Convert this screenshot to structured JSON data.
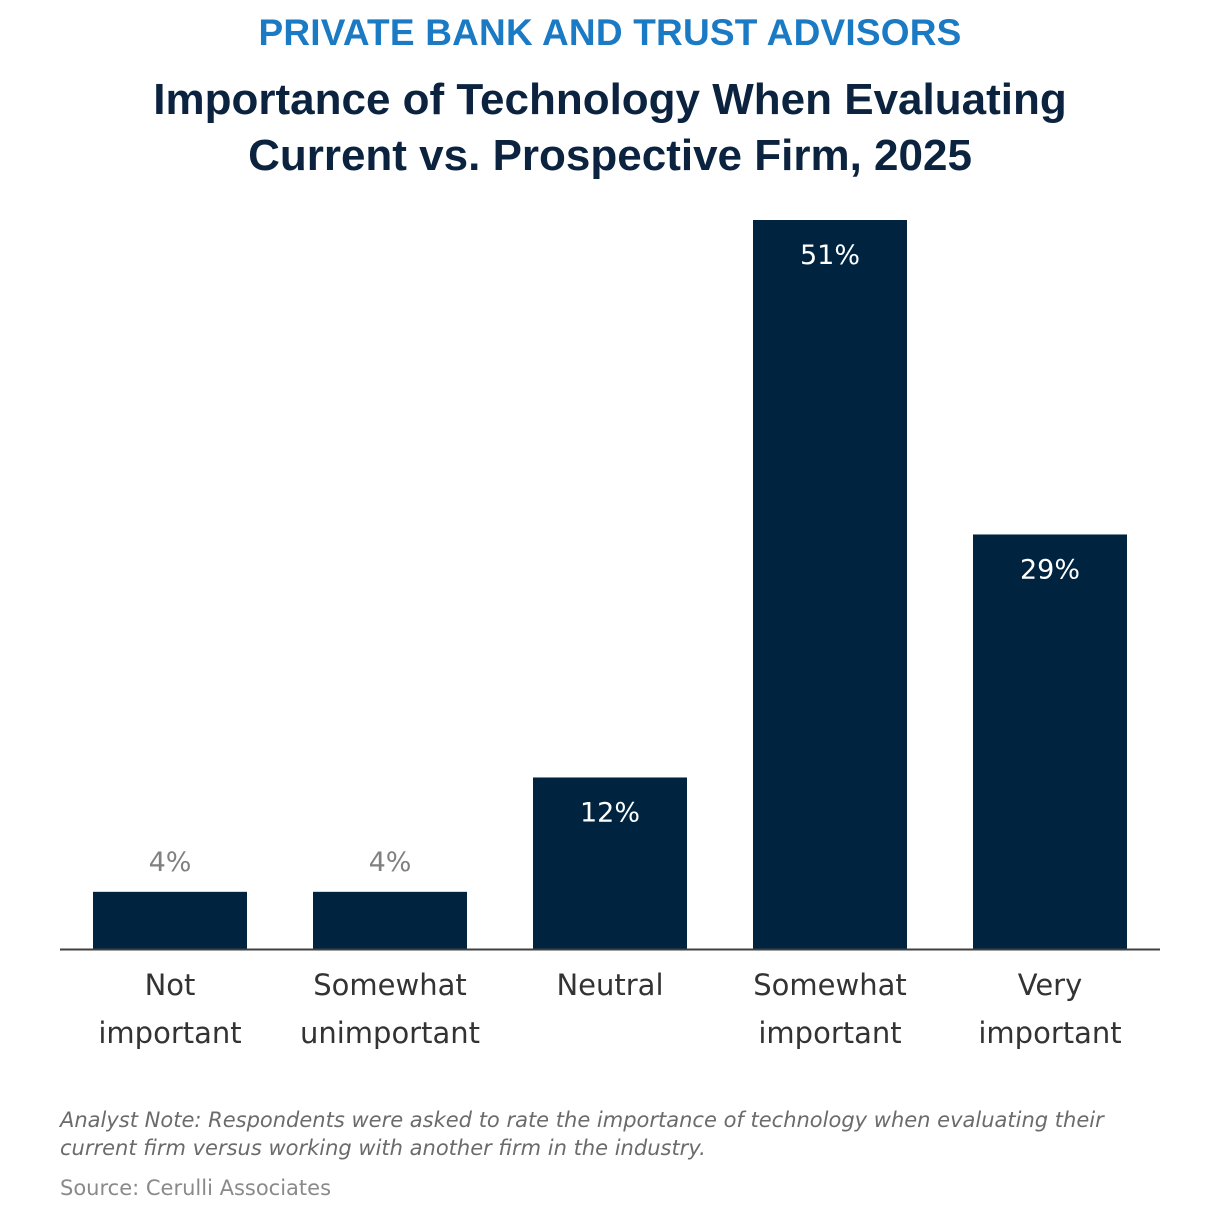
{
  "header": {
    "kicker": "PRIVATE BANK AND TRUST ADVISORS",
    "title_line1": "Importance of Technology When Evaluating",
    "title_line2": "Current vs. Prospective Firm, 2025"
  },
  "colors": {
    "kicker": "#1a7ac4",
    "title": "#0c2340",
    "bar": "#002440",
    "label_inside": "#ffffff",
    "label_outside": "#808080",
    "axis_text": "#333333",
    "baseline": "#404040",
    "note_text": "#6b6b6b",
    "source_text": "#8a8a8a"
  },
  "chart_data": {
    "type": "bar",
    "title": "Importance of Technology When Evaluating Current vs. Prospective Firm, 2025",
    "subtitle": "PRIVATE BANK AND TRUST ADVISORS",
    "categories": [
      [
        "Not",
        "important"
      ],
      [
        "Somewhat",
        "unimportant"
      ],
      [
        "Neutral"
      ],
      [
        "Somewhat",
        "important"
      ],
      [
        "Very",
        "important"
      ]
    ],
    "values": [
      4,
      4,
      12,
      51,
      29
    ],
    "value_labels": [
      "4%",
      "4%",
      "12%",
      "51%",
      "29%"
    ],
    "unit": "%",
    "ylim": [
      0,
      51
    ],
    "grid": false,
    "legend": "none"
  },
  "footer": {
    "note": "Analyst Note: Respondents were asked to rate the importance of technology when evaluating their current firm versus working with another firm in the industry.",
    "source": "Source: Cerulli Associates"
  }
}
